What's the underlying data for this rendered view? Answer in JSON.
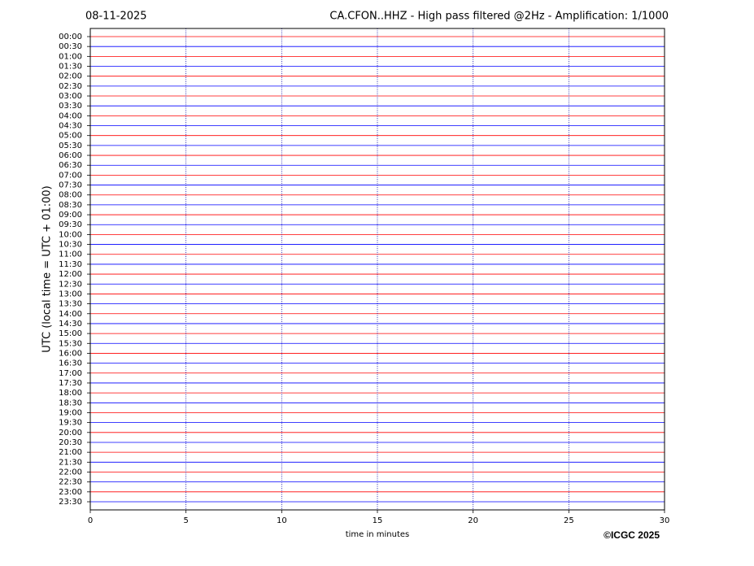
{
  "chart_data": {
    "type": "helicorder",
    "date": "08-11-2025",
    "title": "CA.CFON..HHZ - High pass filtered @2Hz - Amplification: 1/1000",
    "y_label": "UTC (local time = UTC + 01:00)",
    "x_label": "time in minutes",
    "credit": "©ICGC 2025",
    "categories": [
      "00:00",
      "00:30",
      "01:00",
      "01:30",
      "02:00",
      "02:30",
      "03:00",
      "03:30",
      "04:00",
      "04:30",
      "05:00",
      "05:30",
      "06:00",
      "06:30",
      "07:00",
      "07:30",
      "08:00",
      "08:30",
      "09:00",
      "09:30",
      "10:00",
      "10:30",
      "11:00",
      "11:30",
      "12:00",
      "12:30",
      "13:00",
      "13:30",
      "14:00",
      "14:30",
      "15:00",
      "15:30",
      "16:00",
      "16:30",
      "17:00",
      "17:30",
      "18:00",
      "18:30",
      "19:00",
      "19:30",
      "20:00",
      "20:30",
      "21:00",
      "21:30",
      "22:00",
      "22:30",
      "23:00",
      "23:30"
    ],
    "trace_colors": [
      "#ff0000",
      "#0000ff"
    ],
    "xlim": [
      0,
      30
    ],
    "xticks": [
      0,
      5,
      10,
      15,
      20,
      25,
      30
    ],
    "grid": true
  }
}
